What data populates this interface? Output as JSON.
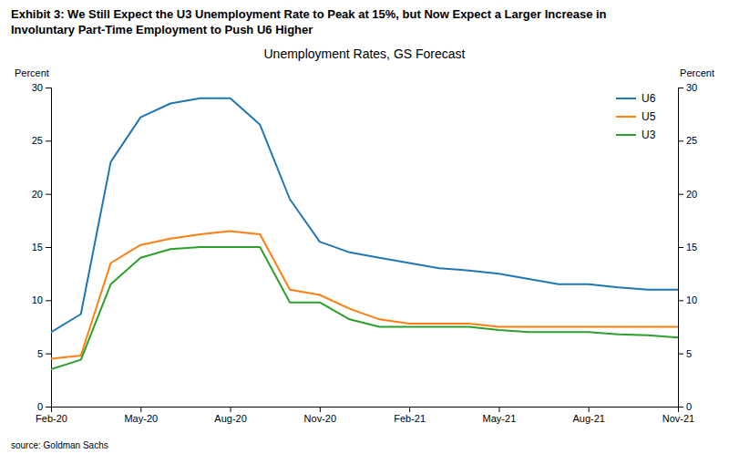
{
  "chart_data": {
    "type": "line",
    "title": [
      "Exhibit 3: We Still Expect the U3 Unemployment Rate to Peak at 15%, but Now Expect a Larger Increase in",
      "Involuntary Part-Time Employment to Push U6 Higher"
    ],
    "subtitle": "Unemployment Rates, GS Forecast",
    "source": "source: Goldman Sachs",
    "y_label": "Percent",
    "y2_label": "Percent",
    "categories": [
      "Feb-20",
      null,
      null,
      "May-20",
      null,
      null,
      "Aug-20",
      null,
      null,
      "Nov-20",
      null,
      null,
      "Feb-21",
      null,
      null,
      "May-21",
      null,
      null,
      "Aug-21",
      null,
      null,
      "Nov-21"
    ],
    "series": [
      {
        "name": "U6",
        "values": [
          7.0,
          8.7,
          23.0,
          27.2,
          28.5,
          29.0,
          29.0,
          26.5,
          19.5,
          15.5,
          14.5,
          14.0,
          13.5,
          13.0,
          12.8,
          12.5,
          12.0,
          11.5,
          11.5,
          11.2,
          11.0,
          11.0
        ]
      },
      {
        "name": "U5",
        "values": [
          4.5,
          4.8,
          13.5,
          15.2,
          15.8,
          16.2,
          16.5,
          16.2,
          11.0,
          10.5,
          9.2,
          8.2,
          7.8,
          7.8,
          7.8,
          7.5,
          7.5,
          7.5,
          7.5,
          7.5,
          7.5,
          7.5
        ]
      },
      {
        "name": "U3",
        "values": [
          3.5,
          4.4,
          11.5,
          14.0,
          14.8,
          15.0,
          15.0,
          15.0,
          9.8,
          9.8,
          8.2,
          7.5,
          7.5,
          7.5,
          7.5,
          7.2,
          7.0,
          7.0,
          7.0,
          6.8,
          6.7,
          6.5
        ]
      }
    ],
    "ylim": [
      0,
      30
    ],
    "yticks": [
      0,
      5,
      10,
      15,
      20,
      25,
      30
    ],
    "y2lim": [
      0,
      30
    ],
    "y2ticks": [
      0,
      5,
      10,
      15,
      20,
      25,
      30
    ],
    "legend": "upper-right",
    "grid": false
  }
}
